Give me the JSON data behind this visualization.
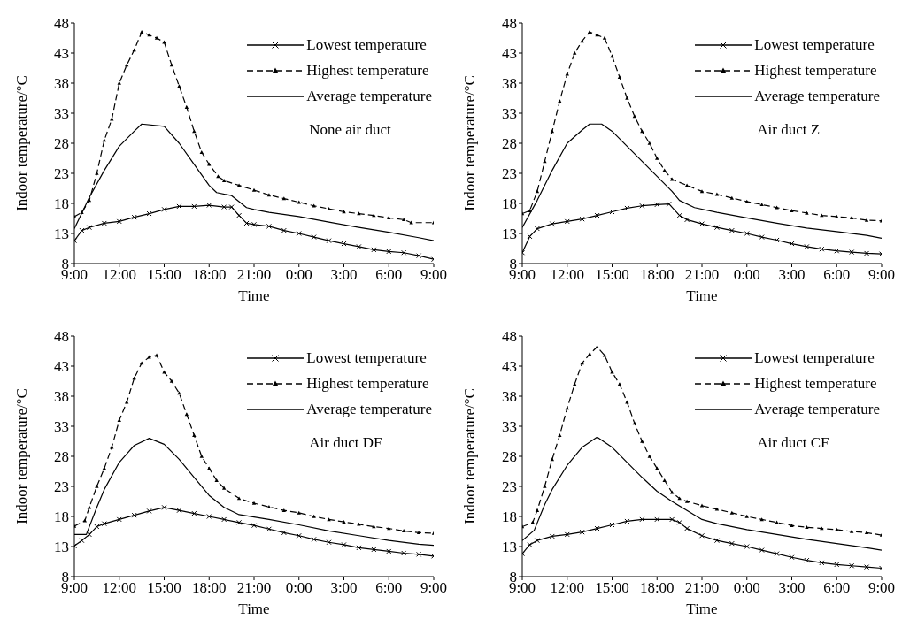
{
  "chart_data": [
    {
      "type": "line",
      "xlabel": "Time",
      "ylabel": "Indoor temperature/°C",
      "xlim": [
        "2000-01-01T09:00",
        "2000-01-02T09:00"
      ],
      "xticks": [
        {
          "value": "2000-01-01T09:00",
          "label": "9:00"
        },
        {
          "value": "2000-01-01T12:00",
          "label": "12:00"
        },
        {
          "value": "2000-01-01T15:00",
          "label": "15:00"
        },
        {
          "value": "2000-01-01T18:00",
          "label": "18:00"
        },
        {
          "value": "2000-01-01T21:00",
          "label": "21:00"
        },
        {
          "value": "2000-01-02T00:00",
          "label": "0:00"
        },
        {
          "value": "2000-01-02T03:00",
          "label": "3:00"
        },
        {
          "value": "2000-01-02T06:00",
          "label": "6:00"
        },
        {
          "value": "2000-01-02T09:00",
          "label": "9:00"
        }
      ],
      "ylim": [
        8,
        48
      ],
      "yticks": [
        8,
        13,
        18,
        23,
        28,
        33,
        38,
        43,
        48
      ],
      "legend": "top right",
      "annotations": [
        "None air duct"
      ],
      "series": [
        {
          "name": "Lowest temperature",
          "color": "#000000",
          "marker": "cross",
          "line_style": "solid",
          "x": [
            "2000-01-01T09:00",
            "2000-01-01T09:30",
            "2000-01-01T10:00",
            "2000-01-01T11:00",
            "2000-01-01T12:00",
            "2000-01-01T13:00",
            "2000-01-01T14:00",
            "2000-01-01T15:00",
            "2000-01-01T16:00",
            "2000-01-01T17:00",
            "2000-01-01T18:00",
            "2000-01-01T19:00",
            "2000-01-01T19:30",
            "2000-01-01T20:00",
            "2000-01-01T20:30",
            "2000-01-01T21:00",
            "2000-01-01T22:00",
            "2000-01-01T23:00",
            "2000-01-02T00:00",
            "2000-01-02T01:00",
            "2000-01-02T02:00",
            "2000-01-02T03:00",
            "2000-01-02T04:00",
            "2000-01-02T05:00",
            "2000-01-02T06:00",
            "2000-01-02T07:00",
            "2000-01-02T08:00",
            "2000-01-02T09:00"
          ],
          "values": [
            11.8,
            13.5,
            14,
            14.7,
            15,
            15.7,
            16.3,
            17,
            17.5,
            17.5,
            17.7,
            17.4,
            17.4,
            16,
            14.7,
            14.5,
            14.2,
            13.5,
            13,
            12.4,
            11.8,
            11.3,
            10.8,
            10.3,
            10,
            9.8,
            9.3,
            8.7
          ]
        },
        {
          "name": "Highest temperature",
          "color": "#000000",
          "marker": "triangle",
          "line_style": "dashed",
          "x": [
            "2000-01-01T09:00",
            "2000-01-01T09:30",
            "2000-01-01T10:00",
            "2000-01-01T10:30",
            "2000-01-01T11:00",
            "2000-01-01T11:30",
            "2000-01-01T12:00",
            "2000-01-01T12:30",
            "2000-01-01T13:00",
            "2000-01-01T13:30",
            "2000-01-01T14:00",
            "2000-01-01T14:30",
            "2000-01-01T15:00",
            "2000-01-01T15:30",
            "2000-01-01T16:00",
            "2000-01-01T16:30",
            "2000-01-01T17:00",
            "2000-01-01T17:30",
            "2000-01-01T18:00",
            "2000-01-01T18:36",
            "2000-01-01T19:00",
            "2000-01-01T20:00",
            "2000-01-01T21:00",
            "2000-01-01T22:00",
            "2000-01-01T23:00",
            "2000-01-02T00:00",
            "2000-01-02T01:00",
            "2000-01-02T02:00",
            "2000-01-02T03:00",
            "2000-01-02T04:00",
            "2000-01-02T05:00",
            "2000-01-02T06:00",
            "2000-01-02T07:00",
            "2000-01-02T07:30",
            "2000-01-02T09:00"
          ],
          "values": [
            15.8,
            16.5,
            18.5,
            23,
            28.5,
            32,
            38,
            41,
            43.5,
            46.5,
            46,
            45.5,
            44.8,
            41,
            37.5,
            34,
            30,
            26.5,
            24.5,
            22.5,
            21.8,
            21,
            20.2,
            19.4,
            18.8,
            18.2,
            17.6,
            17.1,
            16.6,
            16.3,
            16,
            15.6,
            15.3,
            14.8,
            14.8
          ]
        },
        {
          "name": "Average temperature",
          "color": "#000000",
          "marker": "none",
          "line_style": "solid",
          "x": [
            "2000-01-01T09:00",
            "2000-01-01T10:00",
            "2000-01-01T11:00",
            "2000-01-01T12:00",
            "2000-01-01T13:00",
            "2000-01-01T13:30",
            "2000-01-01T15:00",
            "2000-01-01T16:00",
            "2000-01-01T17:00",
            "2000-01-01T18:00",
            "2000-01-01T18:30",
            "2000-01-01T19:30",
            "2000-01-01T20:30",
            "2000-01-01T21:00",
            "2000-01-01T22:00",
            "2000-01-02T00:00",
            "2000-01-02T02:00",
            "2000-01-02T04:00",
            "2000-01-02T06:00",
            "2000-01-02T08:00",
            "2000-01-02T09:00"
          ],
          "values": [
            13.8,
            19,
            23.5,
            27.5,
            30,
            31.2,
            30.8,
            28,
            24.5,
            21,
            19.8,
            19.3,
            17.3,
            17,
            16.5,
            15.8,
            14.9,
            14,
            13.2,
            12.3,
            11.8
          ]
        }
      ]
    },
    {
      "type": "line",
      "xlabel": "Time",
      "ylabel": "Indoor temperature/°C",
      "xlim": [
        "2000-01-01T09:00",
        "2000-01-02T09:00"
      ],
      "xticks": [
        {
          "value": "2000-01-01T09:00",
          "label": "9:00"
        },
        {
          "value": "2000-01-01T12:00",
          "label": "12:00"
        },
        {
          "value": "2000-01-01T15:00",
          "label": "15:00"
        },
        {
          "value": "2000-01-01T18:00",
          "label": "18:00"
        },
        {
          "value": "2000-01-01T21:00",
          "label": "21:00"
        },
        {
          "value": "2000-01-02T00:00",
          "label": "0:00"
        },
        {
          "value": "2000-01-02T03:00",
          "label": "3:00"
        },
        {
          "value": "2000-01-02T06:00",
          "label": "6:00"
        },
        {
          "value": "2000-01-02T09:00",
          "label": "9:00"
        }
      ],
      "ylim": [
        8,
        48
      ],
      "yticks": [
        8,
        13,
        18,
        23,
        28,
        33,
        38,
        43,
        48
      ],
      "legend": "top right",
      "annotations": [
        "Air duct Z"
      ],
      "series": [
        {
          "name": "Lowest temperature",
          "color": "#000000",
          "marker": "cross",
          "line_style": "solid",
          "x": [
            "2000-01-01T09:00",
            "2000-01-01T09:30",
            "2000-01-01T10:00",
            "2000-01-01T11:00",
            "2000-01-01T12:00",
            "2000-01-01T13:00",
            "2000-01-01T14:00",
            "2000-01-01T15:00",
            "2000-01-01T16:00",
            "2000-01-01T17:00",
            "2000-01-01T18:00",
            "2000-01-01T18:48",
            "2000-01-01T19:30",
            "2000-01-01T20:00",
            "2000-01-01T21:00",
            "2000-01-01T22:00",
            "2000-01-01T23:00",
            "2000-01-02T00:00",
            "2000-01-02T01:00",
            "2000-01-02T02:00",
            "2000-01-02T03:00",
            "2000-01-02T04:00",
            "2000-01-02T05:00",
            "2000-01-02T06:00",
            "2000-01-02T07:00",
            "2000-01-02T08:00",
            "2000-01-02T09:00"
          ],
          "values": [
            9.8,
            12.5,
            13.8,
            14.6,
            15,
            15.4,
            16,
            16.6,
            17.2,
            17.6,
            17.8,
            17.9,
            16,
            15.3,
            14.6,
            14,
            13.5,
            13,
            12.4,
            11.9,
            11.3,
            10.8,
            10.4,
            10.1,
            9.9,
            9.7,
            9.6
          ]
        },
        {
          "name": "Highest temperature",
          "color": "#000000",
          "marker": "triangle",
          "line_style": "dashed",
          "x": [
            "2000-01-01T09:00",
            "2000-01-01T09:30",
            "2000-01-01T10:00",
            "2000-01-01T10:30",
            "2000-01-01T11:00",
            "2000-01-01T11:30",
            "2000-01-01T12:00",
            "2000-01-01T12:30",
            "2000-01-01T13:00",
            "2000-01-01T13:30",
            "2000-01-01T14:00",
            "2000-01-01T14:30",
            "2000-01-01T15:00",
            "2000-01-01T15:30",
            "2000-01-01T16:00",
            "2000-01-01T16:30",
            "2000-01-01T17:00",
            "2000-01-01T17:30",
            "2000-01-01T18:00",
            "2000-01-01T18:30",
            "2000-01-01T19:00",
            "2000-01-01T20:00",
            "2000-01-01T21:00",
            "2000-01-01T22:00",
            "2000-01-01T23:00",
            "2000-01-02T00:00",
            "2000-01-02T01:00",
            "2000-01-02T02:00",
            "2000-01-02T03:00",
            "2000-01-02T04:00",
            "2000-01-02T05:00",
            "2000-01-02T06:00",
            "2000-01-02T07:00",
            "2000-01-02T08:00",
            "2000-01-02T09:00"
          ],
          "values": [
            16.3,
            16.8,
            20,
            25,
            30,
            35,
            39.5,
            43,
            45,
            46.5,
            46,
            45.5,
            42.5,
            39,
            35.5,
            32.5,
            30,
            28,
            25.5,
            23.5,
            22,
            21,
            20,
            19.5,
            18.9,
            18.3,
            17.8,
            17.3,
            16.8,
            16.4,
            16,
            15.8,
            15.6,
            15.2,
            15.1
          ]
        },
        {
          "name": "Average temperature",
          "color": "#000000",
          "marker": "none",
          "line_style": "solid",
          "x": [
            "2000-01-01T09:00",
            "2000-01-01T10:00",
            "2000-01-01T11:00",
            "2000-01-01T12:00",
            "2000-01-01T13:00",
            "2000-01-01T13:30",
            "2000-01-01T14:18",
            "2000-01-01T15:00",
            "2000-01-01T16:00",
            "2000-01-01T17:00",
            "2000-01-01T18:00",
            "2000-01-01T19:00",
            "2000-01-01T19:30",
            "2000-01-01T20:30",
            "2000-01-01T22:00",
            "2000-01-02T00:00",
            "2000-01-02T02:00",
            "2000-01-02T04:00",
            "2000-01-02T06:00",
            "2000-01-02T08:00",
            "2000-01-02T09:00"
          ],
          "values": [
            14,
            18.5,
            23.5,
            28,
            30.2,
            31.2,
            31.2,
            30,
            27.5,
            25,
            22.5,
            20,
            18.5,
            17.3,
            16.5,
            15.6,
            14.7,
            13.9,
            13.3,
            12.7,
            12.2
          ]
        }
      ]
    },
    {
      "type": "line",
      "xlabel": "Time",
      "ylabel": "Indoor temperature/°C",
      "xlim": [
        "2000-01-01T09:00",
        "2000-01-02T09:00"
      ],
      "xticks": [
        {
          "value": "2000-01-01T09:00",
          "label": "9:00"
        },
        {
          "value": "2000-01-01T12:00",
          "label": "12:00"
        },
        {
          "value": "2000-01-01T15:00",
          "label": "15:00"
        },
        {
          "value": "2000-01-01T18:00",
          "label": "18:00"
        },
        {
          "value": "2000-01-01T21:00",
          "label": "21:00"
        },
        {
          "value": "2000-01-02T00:00",
          "label": "0:00"
        },
        {
          "value": "2000-01-02T03:00",
          "label": "3:00"
        },
        {
          "value": "2000-01-02T06:00",
          "label": "6:00"
        },
        {
          "value": "2000-01-02T09:00",
          "label": "9:00"
        }
      ],
      "ylim": [
        8,
        48
      ],
      "yticks": [
        8,
        13,
        18,
        23,
        28,
        33,
        38,
        43,
        48
      ],
      "legend": "top right",
      "annotations": [
        "Air duct DF"
      ],
      "series": [
        {
          "name": "Lowest temperature",
          "color": "#000000",
          "marker": "cross",
          "line_style": "solid",
          "x": [
            "2000-01-01T09:00",
            "2000-01-01T09:30",
            "2000-01-01T10:00",
            "2000-01-01T10:30",
            "2000-01-01T11:00",
            "2000-01-01T12:00",
            "2000-01-01T13:00",
            "2000-01-01T14:00",
            "2000-01-01T15:00",
            "2000-01-01T16:00",
            "2000-01-01T17:00",
            "2000-01-01T18:00",
            "2000-01-01T19:00",
            "2000-01-01T20:00",
            "2000-01-01T21:00",
            "2000-01-01T22:00",
            "2000-01-01T23:00",
            "2000-01-02T00:00",
            "2000-01-02T01:00",
            "2000-01-02T02:00",
            "2000-01-02T03:00",
            "2000-01-02T04:00",
            "2000-01-02T05:00",
            "2000-01-02T06:00",
            "2000-01-02T07:00",
            "2000-01-02T08:00",
            "2000-01-02T09:00"
          ],
          "values": [
            13.1,
            14,
            15,
            16.3,
            16.8,
            17.5,
            18.2,
            18.9,
            19.5,
            19,
            18.5,
            18,
            17.5,
            17,
            16.5,
            15.9,
            15.3,
            14.8,
            14.2,
            13.7,
            13.3,
            12.8,
            12.5,
            12.2,
            11.9,
            11.7,
            11.4
          ]
        },
        {
          "name": "Highest temperature",
          "color": "#000000",
          "marker": "triangle",
          "line_style": "dashed",
          "x": [
            "2000-01-01T09:00",
            "2000-01-01T09:42",
            "2000-01-01T10:00",
            "2000-01-01T10:30",
            "2000-01-01T11:00",
            "2000-01-01T11:30",
            "2000-01-01T12:00",
            "2000-01-01T12:30",
            "2000-01-01T13:00",
            "2000-01-01T13:30",
            "2000-01-01T14:00",
            "2000-01-01T14:30",
            "2000-01-01T15:00",
            "2000-01-01T15:30",
            "2000-01-01T16:00",
            "2000-01-01T16:30",
            "2000-01-01T17:00",
            "2000-01-01T17:30",
            "2000-01-01T18:00",
            "2000-01-01T18:30",
            "2000-01-01T19:00",
            "2000-01-01T20:00",
            "2000-01-01T21:00",
            "2000-01-01T22:00",
            "2000-01-01T23:00",
            "2000-01-02T00:00",
            "2000-01-02T01:00",
            "2000-01-02T02:00",
            "2000-01-02T03:00",
            "2000-01-02T04:00",
            "2000-01-02T05:00",
            "2000-01-02T06:00",
            "2000-01-02T07:00",
            "2000-01-02T08:00",
            "2000-01-02T09:00"
          ],
          "values": [
            16.4,
            17.3,
            19.5,
            23,
            26,
            29.5,
            34,
            37,
            41,
            43.5,
            44.5,
            44.8,
            42,
            40.5,
            38.5,
            35,
            31.5,
            28,
            26,
            24,
            22.7,
            21,
            20.2,
            19.6,
            19,
            18.6,
            18,
            17.5,
            17.1,
            16.7,
            16.3,
            16,
            15.6,
            15.3,
            15.2
          ]
        },
        {
          "name": "Average temperature",
          "color": "#000000",
          "marker": "none",
          "line_style": "solid",
          "x": [
            "2000-01-01T09:00",
            "2000-01-01T09:48",
            "2000-01-01T10:30",
            "2000-01-01T11:00",
            "2000-01-01T12:00",
            "2000-01-01T13:00",
            "2000-01-01T14:00",
            "2000-01-01T15:00",
            "2000-01-01T16:00",
            "2000-01-01T17:00",
            "2000-01-01T18:00",
            "2000-01-01T19:00",
            "2000-01-01T20:00",
            "2000-01-01T22:00",
            "2000-01-02T00:00",
            "2000-01-02T02:00",
            "2000-01-02T04:00",
            "2000-01-02T06:00",
            "2000-01-02T08:00",
            "2000-01-02T09:00"
          ],
          "values": [
            15,
            15,
            19.5,
            22.5,
            27,
            29.8,
            31,
            30,
            27.5,
            24.5,
            21.5,
            19.5,
            18.3,
            17.5,
            16.6,
            15.6,
            14.8,
            14,
            13.4,
            13.2
          ]
        }
      ]
    },
    {
      "type": "line",
      "xlabel": "Time",
      "ylabel": "Indoor temperature/°C",
      "xlim": [
        "2000-01-01T09:00",
        "2000-01-02T09:00"
      ],
      "xticks": [
        {
          "value": "2000-01-01T09:00",
          "label": "9:00"
        },
        {
          "value": "2000-01-01T12:00",
          "label": "12:00"
        },
        {
          "value": "2000-01-01T15:00",
          "label": "15:00"
        },
        {
          "value": "2000-01-01T18:00",
          "label": "18:00"
        },
        {
          "value": "2000-01-01T21:00",
          "label": "21:00"
        },
        {
          "value": "2000-01-02T00:00",
          "label": "0:00"
        },
        {
          "value": "2000-01-02T03:00",
          "label": "3:00"
        },
        {
          "value": "2000-01-02T06:00",
          "label": "6:00"
        },
        {
          "value": "2000-01-02T09:00",
          "label": "9:00"
        }
      ],
      "ylim": [
        8,
        48
      ],
      "yticks": [
        8,
        13,
        18,
        23,
        28,
        33,
        38,
        43,
        48
      ],
      "legend": "top right",
      "annotations": [
        "Air duct CF"
      ],
      "series": [
        {
          "name": "Lowest temperature",
          "color": "#000000",
          "marker": "cross",
          "line_style": "solid",
          "x": [
            "2000-01-01T09:00",
            "2000-01-01T09:30",
            "2000-01-01T10:00",
            "2000-01-01T11:00",
            "2000-01-01T12:00",
            "2000-01-01T13:00",
            "2000-01-01T14:00",
            "2000-01-01T15:00",
            "2000-01-01T16:00",
            "2000-01-01T17:00",
            "2000-01-01T18:00",
            "2000-01-01T19:00",
            "2000-01-01T19:30",
            "2000-01-01T20:00",
            "2000-01-01T21:00",
            "2000-01-01T22:00",
            "2000-01-01T23:00",
            "2000-01-02T00:00",
            "2000-01-02T01:00",
            "2000-01-02T02:00",
            "2000-01-02T03:00",
            "2000-01-02T04:00",
            "2000-01-02T05:00",
            "2000-01-02T06:00",
            "2000-01-02T07:00",
            "2000-01-02T08:00",
            "2000-01-02T09:00"
          ],
          "values": [
            11.8,
            13.3,
            14,
            14.7,
            15,
            15.4,
            16,
            16.6,
            17.2,
            17.5,
            17.5,
            17.5,
            17,
            16,
            14.8,
            14,
            13.5,
            13,
            12.4,
            11.8,
            11.2,
            10.7,
            10.3,
            10,
            9.8,
            9.6,
            9.4
          ]
        },
        {
          "name": "Highest temperature",
          "color": "#000000",
          "marker": "triangle",
          "line_style": "dashed",
          "x": [
            "2000-01-01T09:00",
            "2000-01-01T09:42",
            "2000-01-01T10:00",
            "2000-01-01T10:30",
            "2000-01-01T11:00",
            "2000-01-01T11:30",
            "2000-01-01T12:00",
            "2000-01-01T12:30",
            "2000-01-01T13:00",
            "2000-01-01T13:30",
            "2000-01-01T14:00",
            "2000-01-01T14:30",
            "2000-01-01T15:00",
            "2000-01-01T15:30",
            "2000-01-01T16:00",
            "2000-01-01T16:30",
            "2000-01-01T17:00",
            "2000-01-01T17:30",
            "2000-01-01T18:00",
            "2000-01-01T18:30",
            "2000-01-01T19:00",
            "2000-01-01T19:30",
            "2000-01-01T20:00",
            "2000-01-01T21:00",
            "2000-01-01T22:00",
            "2000-01-01T23:00",
            "2000-01-02T00:00",
            "2000-01-02T01:00",
            "2000-01-02T02:00",
            "2000-01-02T03:00",
            "2000-01-02T04:00",
            "2000-01-02T05:00",
            "2000-01-02T06:00",
            "2000-01-02T07:00",
            "2000-01-02T08:00",
            "2000-01-02T09:00"
          ],
          "values": [
            16.3,
            17,
            19,
            23,
            27.5,
            31.5,
            36,
            40,
            43.5,
            45,
            46.2,
            44.8,
            42,
            40,
            37,
            33.5,
            30.5,
            28,
            26,
            24,
            22,
            21,
            20.5,
            19.8,
            19.2,
            18.6,
            18,
            17.5,
            17,
            16.5,
            16.2,
            16,
            15.8,
            15.5,
            15.3,
            14.9
          ]
        },
        {
          "name": "Average temperature",
          "color": "#000000",
          "marker": "none",
          "line_style": "solid",
          "x": [
            "2000-01-01T09:00",
            "2000-01-01T09:48",
            "2000-01-01T10:30",
            "2000-01-01T11:00",
            "2000-01-01T12:00",
            "2000-01-01T13:00",
            "2000-01-01T14:00",
            "2000-01-01T15:00",
            "2000-01-01T16:00",
            "2000-01-01T17:00",
            "2000-01-01T18:00",
            "2000-01-01T19:00",
            "2000-01-01T20:00",
            "2000-01-01T21:00",
            "2000-01-01T22:00",
            "2000-01-02T00:00",
            "2000-01-02T02:00",
            "2000-01-02T04:00",
            "2000-01-02T06:00",
            "2000-01-02T08:00",
            "2000-01-02T09:00"
          ],
          "values": [
            14,
            15.7,
            20,
            22.5,
            26.5,
            29.5,
            31.2,
            29.5,
            27,
            24.5,
            22.2,
            20.5,
            19,
            17.5,
            16.8,
            15.8,
            15,
            14.2,
            13.5,
            12.8,
            12.4
          ]
        }
      ]
    }
  ]
}
